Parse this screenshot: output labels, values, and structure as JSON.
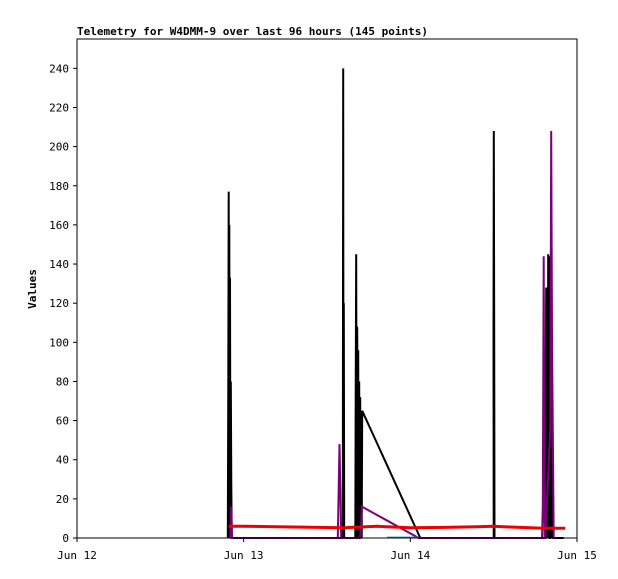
{
  "chart_data": {
    "type": "line",
    "title": "Telemetry for W4DMM-9 over last 96 hours (145 points)",
    "xlabel": "",
    "ylabel": "Values",
    "xlim": [
      0,
      3
    ],
    "ylim": [
      0,
      255
    ],
    "x_ticks": [
      {
        "value": 0,
        "label": "Jun 12"
      },
      {
        "value": 1,
        "label": "Jun 13"
      },
      {
        "value": 2,
        "label": "Jun 14"
      },
      {
        "value": 3,
        "label": "Jun 15"
      }
    ],
    "y_ticks": [
      0,
      20,
      40,
      60,
      80,
      100,
      120,
      140,
      160,
      180,
      200,
      220,
      240
    ],
    "grid": false,
    "colors": {
      "black": "#000000",
      "purple": "#7a007a",
      "red": "#ee0000",
      "blue": "#1090c0"
    },
    "series": [
      {
        "color": "#000000",
        "stroke_width": 2,
        "x": [
          0.905,
          0.908,
          0.91,
          0.912,
          0.914,
          0.916,
          0.918,
          0.921,
          0.923,
          0.926,
          0.929,
          1.595,
          1.597,
          1.599,
          1.601,
          1.603,
          1.605,
          1.607,
          1.609,
          1.67,
          1.672,
          1.675,
          1.678,
          1.681,
          1.684,
          1.687,
          1.69,
          1.693,
          1.696,
          1.699,
          1.702,
          1.705,
          1.708,
          1.711,
          2.06,
          2.5,
          2.499,
          2.501,
          2.503,
          2.505,
          2.507,
          2.806,
          2.809,
          2.812,
          2.815,
          2.818,
          2.821,
          2.824,
          2.827,
          2.83,
          2.833,
          2.836,
          2.839,
          2.842,
          2.845,
          2.848,
          2.851,
          2.854,
          2.857,
          2.86,
          2.863,
          2.866,
          2.87,
          2.9,
          2.92
        ],
        "y": [
          0,
          80,
          177,
          0,
          160,
          0,
          133,
          0,
          80,
          27,
          0,
          0,
          240,
          0,
          120,
          0,
          0,
          0,
          0,
          0,
          72,
          145,
          0,
          108,
          36,
          96,
          0,
          80,
          0,
          72,
          0,
          64,
          0,
          65,
          0,
          0,
          104,
          208,
          104,
          0,
          0,
          0,
          96,
          0,
          128,
          0,
          96,
          0,
          145,
          0,
          144,
          0,
          0,
          96,
          0,
          80,
          0,
          40,
          0,
          0,
          0,
          0,
          0,
          0,
          0
        ]
      },
      {
        "color": "#7a007a",
        "stroke_width": 2,
        "x": [
          0.92,
          0.925,
          0.93,
          1.565,
          1.575,
          1.585,
          1.7,
          1.71,
          2.05,
          2.79,
          2.795,
          2.8,
          2.805,
          2.81,
          2.84,
          2.845,
          2.85,
          2.86,
          2.87
        ],
        "y": [
          0,
          16,
          0,
          0,
          48,
          0,
          0,
          16,
          0,
          0,
          16,
          144,
          0,
          0,
          56,
          208,
          104,
          0,
          0
        ]
      },
      {
        "color": "#ee0000",
        "stroke_width": 3,
        "x": [
          0.91,
          1.0,
          1.2,
          1.4,
          1.6,
          1.8,
          2.0,
          2.2,
          2.4,
          2.5,
          2.6,
          2.8,
          2.93
        ],
        "y": [
          6,
          6,
          5.8,
          5.5,
          5.2,
          6,
          5.2,
          5.4,
          5.8,
          6,
          5.6,
          5,
          5
        ]
      },
      {
        "color": "#1090c0",
        "stroke_width": 1.5,
        "x": [
          1.86,
          2.05
        ],
        "y": [
          0.3,
          0.3
        ]
      }
    ]
  }
}
